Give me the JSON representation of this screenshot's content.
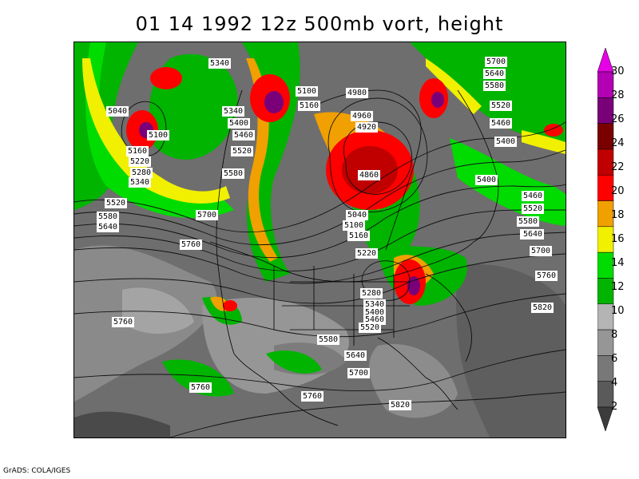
{
  "title": "01 14 1992 12z 500mb vort, height",
  "credit": "GrADS: COLA/IGES",
  "colorbar": {
    "levels": [
      "2",
      "4",
      "6",
      "8",
      "10",
      "12",
      "14",
      "16",
      "18",
      "20",
      "22",
      "24",
      "26",
      "28",
      "30"
    ],
    "colors": [
      "#3c3c3c",
      "#5a5a5a",
      "#787878",
      "#969696",
      "#b4b4b4",
      "#00b400",
      "#00dc00",
      "#f0f000",
      "#f0a000",
      "#ff0000",
      "#c00000",
      "#7a0000",
      "#7a007a",
      "#b400b4",
      "#e600e6"
    ]
  },
  "map": {
    "background_color": "#6e6e6e",
    "contour_labels": [
      "5340",
      "5100",
      "4980",
      "5700",
      "5640",
      "5580",
      "5040",
      "5340",
      "5400",
      "5160",
      "4960",
      "4920",
      "5520",
      "5460",
      "5100",
      "5460",
      "5520",
      "5160",
      "5220",
      "5280",
      "5340",
      "5580",
      "4860",
      "5400",
      "5400",
      "5460",
      "5520",
      "5640",
      "5520",
      "5580",
      "5640",
      "5700",
      "5040",
      "5100",
      "5160",
      "5580",
      "5640",
      "5220",
      "5700",
      "5760",
      "5280",
      "5340",
      "5400",
      "5460",
      "5520",
      "5760",
      "5820",
      "5760",
      "5580",
      "5640",
      "5700",
      "5760",
      "5760",
      "5820"
    ]
  }
}
